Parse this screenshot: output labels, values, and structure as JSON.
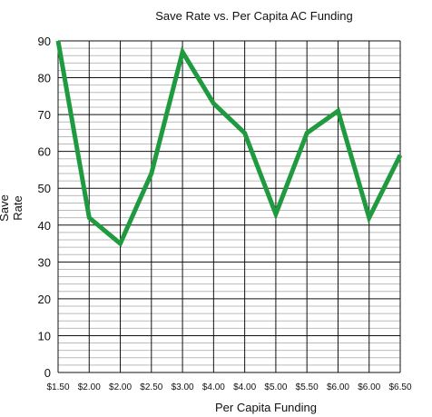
{
  "chart_data": {
    "type": "line",
    "title": "Save Rate vs. Per Capita AC Funding",
    "xlabel": "Per Capita Funding",
    "ylabel_lines": [
      "Save",
      "Rate"
    ],
    "categories": [
      "$1.50",
      "$2.00",
      "$2.00",
      "$2.50",
      "$3.00",
      "$4.00",
      "$4.00",
      "$5.00",
      "$5.50",
      "$6.00",
      "$6.00",
      "$6.50"
    ],
    "series": [
      {
        "values": [
          90,
          42,
          35,
          54,
          87,
          73,
          65,
          43,
          65,
          71,
          42,
          59
        ]
      }
    ],
    "ylim": [
      0,
      90
    ],
    "yticks": [
      0,
      10,
      20,
      30,
      40,
      50,
      60,
      70,
      80,
      90
    ],
    "ytick_labels": [
      "0",
      "10",
      "20",
      "30",
      "40",
      "50",
      "60",
      "70",
      "80",
      "90"
    ],
    "grid": true,
    "minor_grid": true,
    "line_color": "#1f9a3f",
    "grid_color": "#111111",
    "minor_grid_color": "#bbbbbb"
  }
}
